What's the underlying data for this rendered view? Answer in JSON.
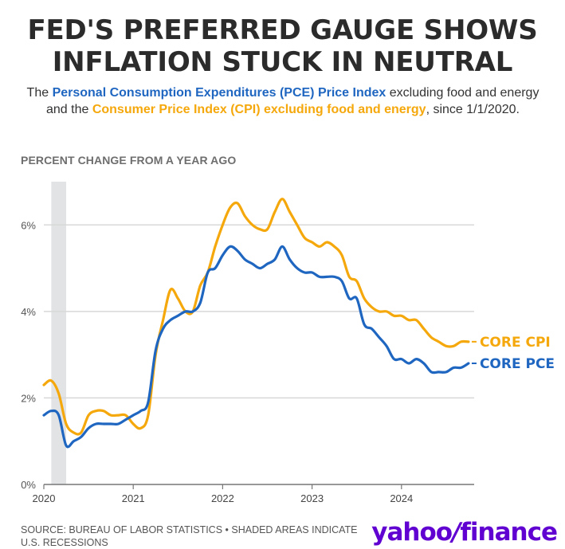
{
  "headline": {
    "line1": "FED'S PREFERRED GAUGE SHOWS",
    "line2": "INFLATION STUCK IN NEUTRAL"
  },
  "subhead": {
    "text_before": "The ",
    "pce_name": "Personal Consumption Expenditures (PCE) Price Index",
    "text_middle": " excluding food and energy and the ",
    "cpi_name": "Consumer Price Index (CPI) excluding food and energy",
    "text_after": ", since 1/1/2020."
  },
  "colors": {
    "pce": "#1f66c1",
    "cpi": "#f5a80c",
    "recession": "#e1e3e5",
    "grid": "#d8d8d8",
    "headline": "#2b2b2b",
    "brand": "#6001d2"
  },
  "source": "SOURCE: BUREAU OF LABOR STATISTICS • SHADED AREAS INDICATE U.S. RECESSIONS",
  "logo": {
    "part1": "yahoo",
    "slash": "/",
    "part2": "finance"
  },
  "chart_data": {
    "type": "line",
    "title": "FED'S PREFERRED GAUGE SHOWS INFLATION STUCK IN NEUTRAL",
    "ylabel": "PERCENT CHANGE FROM A YEAR AGO",
    "xlabel": "",
    "ylim": [
      0,
      7
    ],
    "xlim": [
      "2020-01",
      "2024-10"
    ],
    "y_ticks": [
      0,
      2,
      4,
      6
    ],
    "y_tick_labels": [
      "0%",
      "2%",
      "4%",
      "6%"
    ],
    "x_ticks": [
      "2020-01",
      "2021-01",
      "2022-01",
      "2023-01",
      "2024-01"
    ],
    "x_tick_labels": [
      "2020",
      "2021",
      "2022",
      "2023",
      "2024"
    ],
    "grid": "horizontal",
    "legend": "inline labels at right end of lines",
    "recessions": [
      {
        "start": "2020-02",
        "end": "2020-04"
      }
    ],
    "series": [
      {
        "name": "CORE CPI",
        "color_key": "cpi",
        "start": "2020-01",
        "values": [
          2.3,
          2.4,
          2.1,
          1.4,
          1.2,
          1.2,
          1.6,
          1.7,
          1.7,
          1.6,
          1.6,
          1.6,
          1.4,
          1.3,
          1.6,
          3.0,
          3.8,
          4.5,
          4.3,
          4.0,
          4.0,
          4.6,
          4.9,
          5.5,
          6.0,
          6.4,
          6.5,
          6.2,
          6.0,
          5.9,
          5.9,
          6.3,
          6.6,
          6.3,
          6.0,
          5.7,
          5.6,
          5.5,
          5.6,
          5.5,
          5.3,
          4.8,
          4.7,
          4.3,
          4.1,
          4.0,
          4.0,
          3.9,
          3.9,
          3.8,
          3.8,
          3.6,
          3.4,
          3.3,
          3.2,
          3.2,
          3.3,
          3.3
        ]
      },
      {
        "name": "CORE PCE",
        "color_key": "pce",
        "start": "2020-01",
        "values": [
          1.6,
          1.7,
          1.6,
          0.9,
          1.0,
          1.1,
          1.3,
          1.4,
          1.4,
          1.4,
          1.4,
          1.5,
          1.6,
          1.7,
          1.9,
          3.1,
          3.6,
          3.8,
          3.9,
          4.0,
          4.0,
          4.2,
          4.9,
          5.0,
          5.3,
          5.5,
          5.4,
          5.2,
          5.1,
          5.0,
          5.1,
          5.2,
          5.5,
          5.2,
          5.0,
          4.9,
          4.9,
          4.8,
          4.8,
          4.8,
          4.7,
          4.3,
          4.3,
          3.7,
          3.6,
          3.4,
          3.2,
          2.9,
          2.9,
          2.8,
          2.9,
          2.8,
          2.6,
          2.6,
          2.6,
          2.7,
          2.7,
          2.8
        ]
      }
    ]
  }
}
